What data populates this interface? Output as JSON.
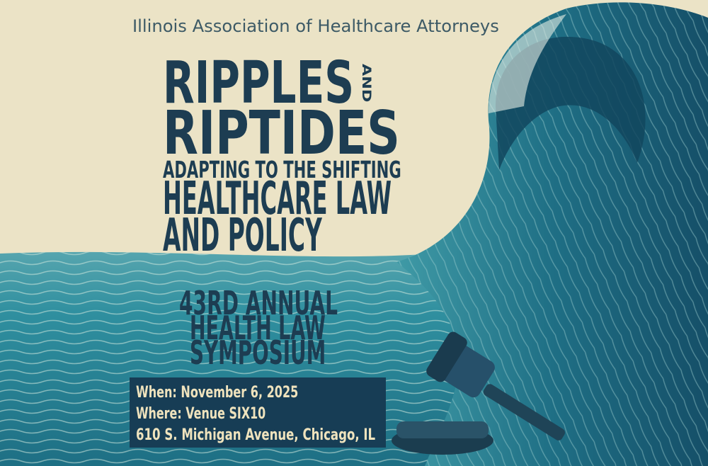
{
  "organization": "Illinois Association of Healthcare Attorneys",
  "title": {
    "line1": "RIPPLES",
    "connector": "AND",
    "line2": "RIPTIDES",
    "subtitle1": "ADAPTING TO THE SHIFTING",
    "subtitle2": "HEALTHCARE LAW",
    "subtitle3": "AND POLICY"
  },
  "event": {
    "line1": "43RD ANNUAL",
    "line2": "HEALTH LAW",
    "line3": "SYMPOSIUM"
  },
  "details": {
    "when": "When: November 6, 2025",
    "where": "Where: Venue SIX10",
    "address": "610 S. Michigan Avenue, Chicago, IL"
  },
  "colors": {
    "background": "#ebe3c6",
    "text": "#1d3d52",
    "info_box": "#173d55",
    "info_text": "#efe3bd",
    "water": "#2d8a9c"
  },
  "icons": [
    "wave-illustration",
    "gavel-icon"
  ]
}
